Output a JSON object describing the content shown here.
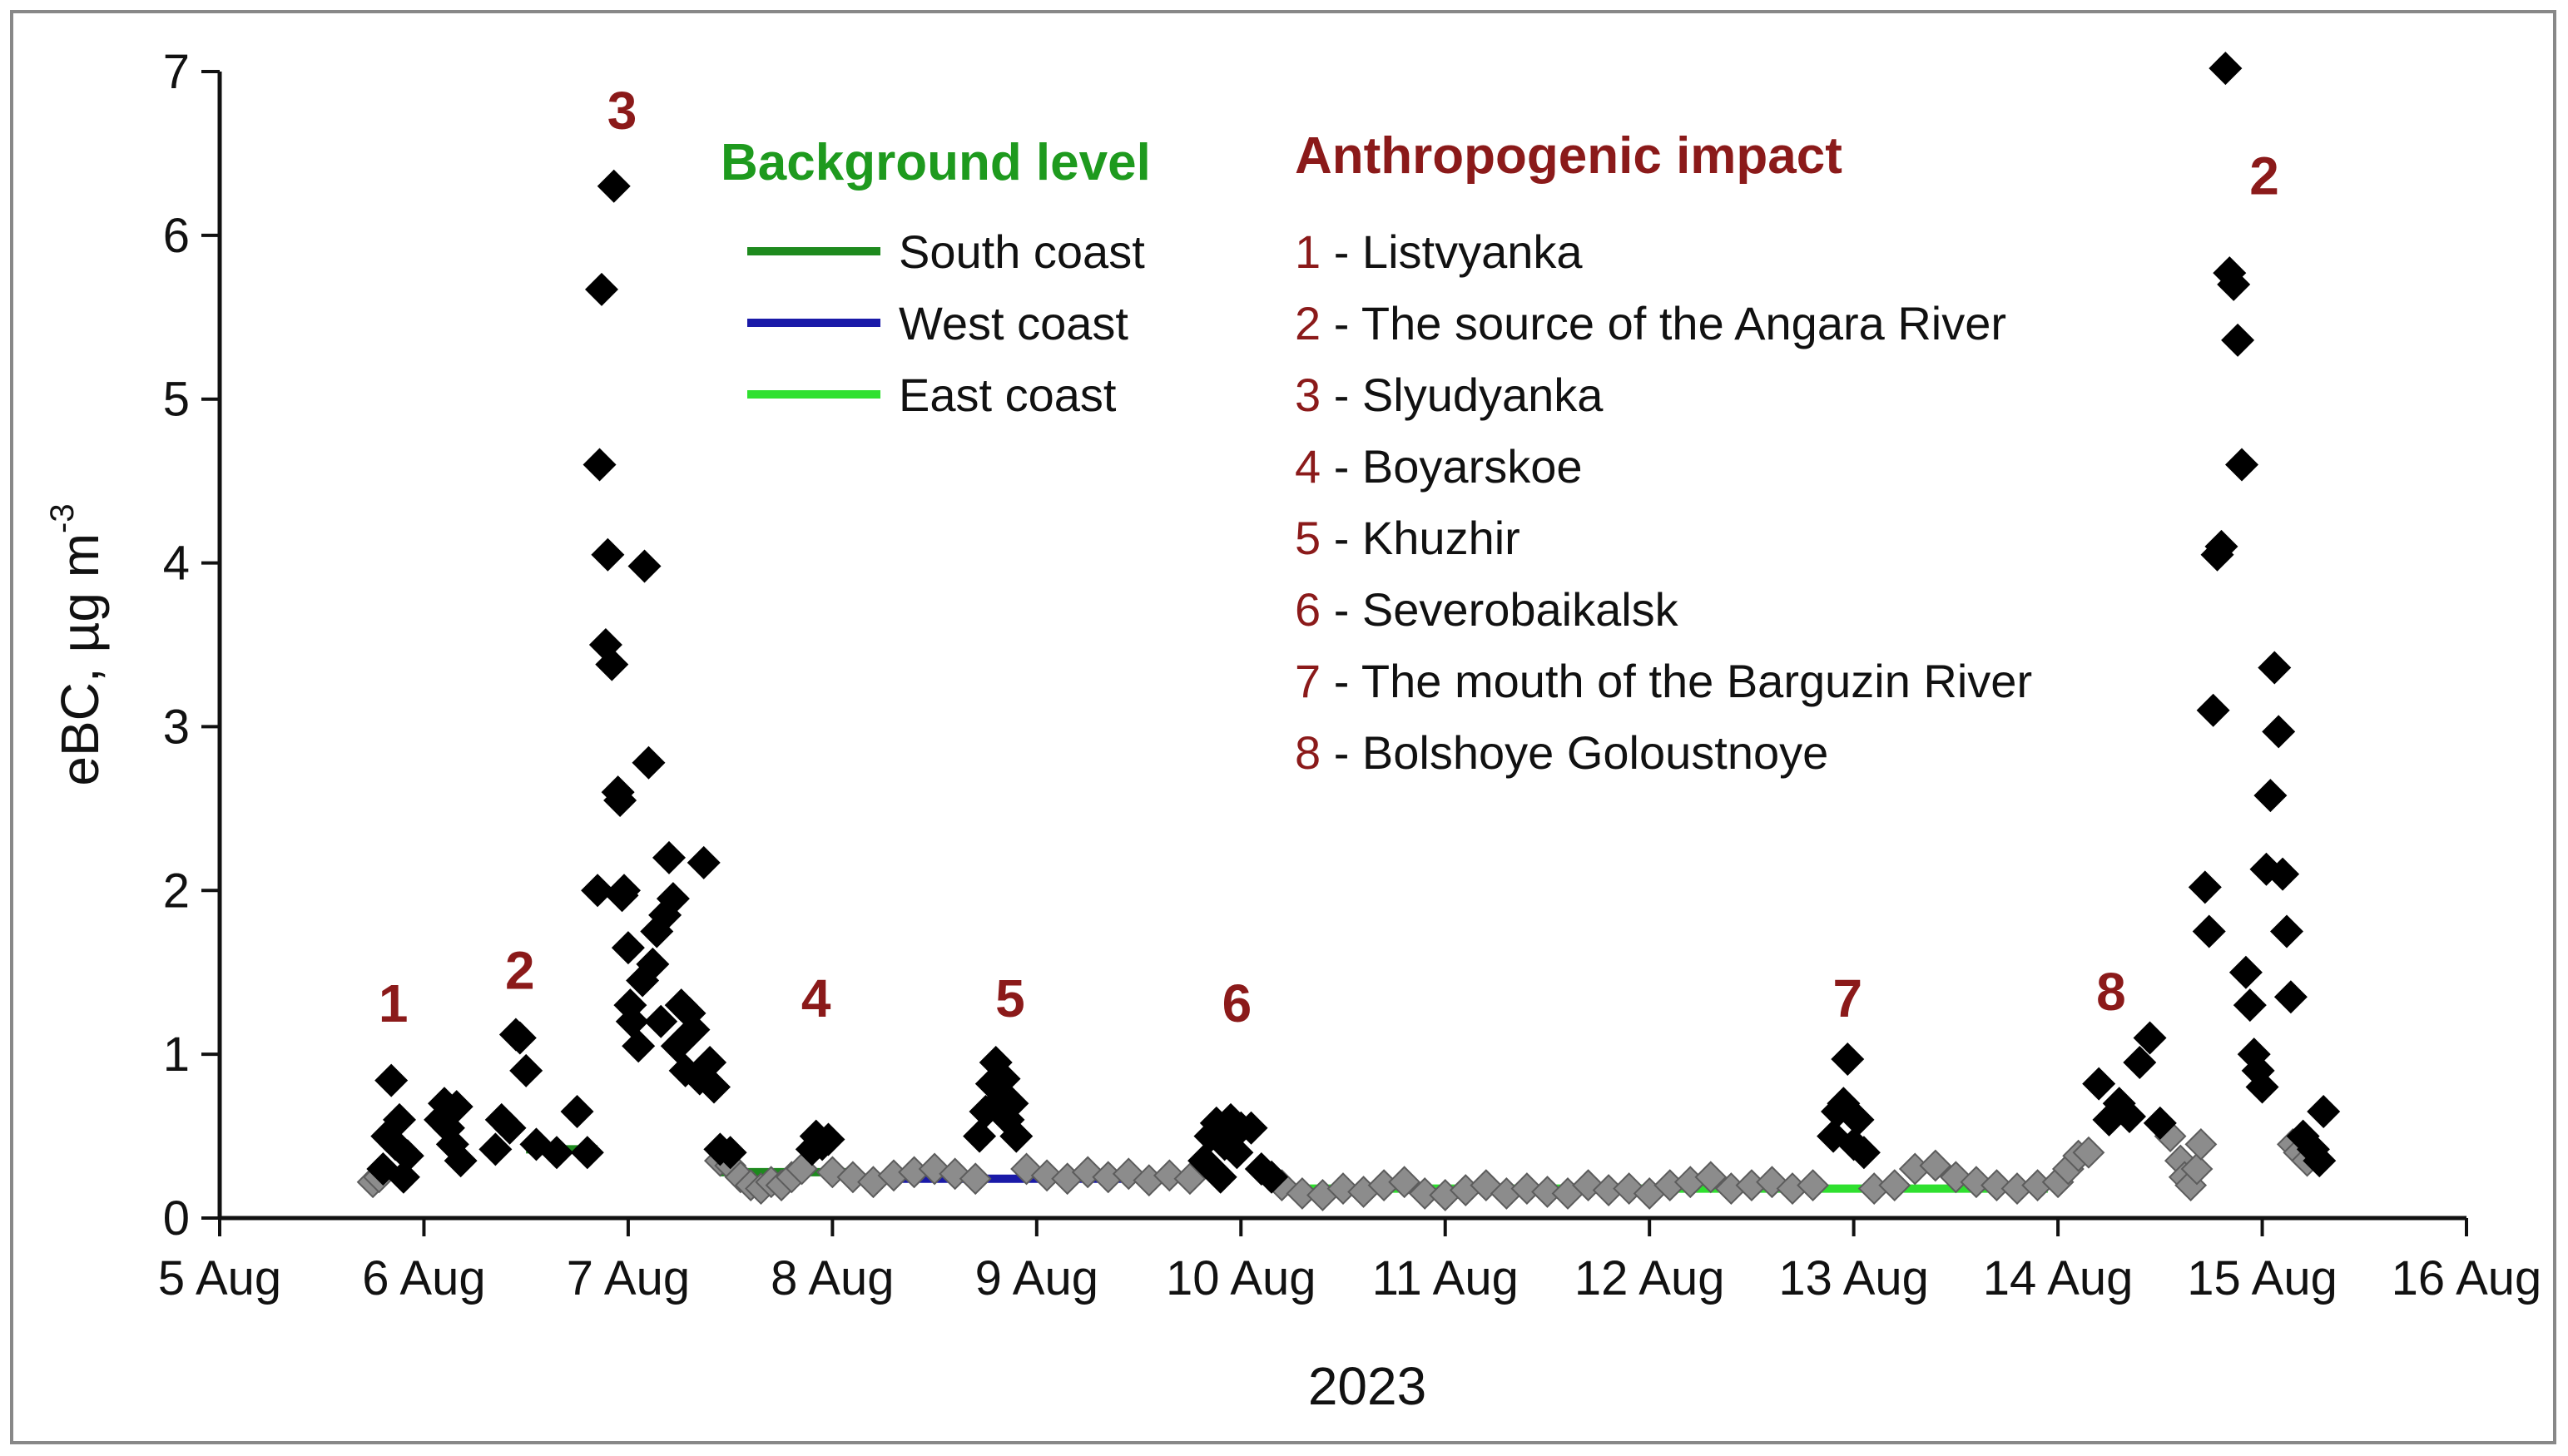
{
  "chart_data": {
    "type": "scatter",
    "title": "",
    "xlabel": "2023",
    "ylabel": "eBC, µg m",
    "ylabel_superscript": "-3",
    "xlim": [
      5,
      16
    ],
    "ylim": [
      0,
      7
    ],
    "x_ticks": [
      {
        "value": 5,
        "label": "5 Aug"
      },
      {
        "value": 6,
        "label": "6 Aug"
      },
      {
        "value": 7,
        "label": "7 Aug"
      },
      {
        "value": 8,
        "label": "8 Aug"
      },
      {
        "value": 9,
        "label": "9 Aug"
      },
      {
        "value": 10,
        "label": "10 Aug"
      },
      {
        "value": 11,
        "label": "11 Aug"
      },
      {
        "value": 12,
        "label": "12 Aug"
      },
      {
        "value": 13,
        "label": "13 Aug"
      },
      {
        "value": 14,
        "label": "14 Aug"
      },
      {
        "value": 15,
        "label": "15 Aug"
      },
      {
        "value": 16,
        "label": "16 Aug"
      }
    ],
    "y_ticks": [
      {
        "value": 0,
        "label": "0"
      },
      {
        "value": 1,
        "label": "1"
      },
      {
        "value": 2,
        "label": "2"
      },
      {
        "value": 3,
        "label": "3"
      },
      {
        "value": 4,
        "label": "4"
      },
      {
        "value": 5,
        "label": "5"
      },
      {
        "value": 6,
        "label": "6"
      },
      {
        "value": 7,
        "label": "7"
      }
    ],
    "grid": false,
    "series": [
      {
        "marker": "diamond",
        "color": "#000000",
        "points": [
          [
            5.8,
            0.3
          ],
          [
            5.82,
            0.5
          ],
          [
            5.84,
            0.84
          ],
          [
            5.86,
            0.45
          ],
          [
            5.88,
            0.6
          ],
          [
            5.9,
            0.25
          ],
          [
            5.92,
            0.38
          ],
          [
            6.08,
            0.6
          ],
          [
            6.1,
            0.7
          ],
          [
            6.12,
            0.55
          ],
          [
            6.14,
            0.45
          ],
          [
            6.16,
            0.68
          ],
          [
            6.18,
            0.35
          ],
          [
            6.35,
            0.42
          ],
          [
            6.38,
            0.6
          ],
          [
            6.42,
            0.55
          ],
          [
            6.45,
            1.12
          ],
          [
            6.47,
            1.1
          ],
          [
            6.5,
            0.9
          ],
          [
            6.55,
            0.45
          ],
          [
            6.65,
            0.4
          ],
          [
            6.75,
            0.65
          ],
          [
            6.8,
            0.4
          ],
          [
            6.85,
            2.0
          ],
          [
            6.86,
            4.6
          ],
          [
            6.87,
            5.67
          ],
          [
            6.89,
            3.5
          ],
          [
            6.9,
            4.05
          ],
          [
            6.92,
            3.38
          ],
          [
            6.93,
            6.3
          ],
          [
            6.95,
            2.6
          ],
          [
            6.96,
            2.55
          ],
          [
            6.97,
            1.97
          ],
          [
            6.98,
            2.0
          ],
          [
            7.0,
            1.65
          ],
          [
            7.01,
            1.3
          ],
          [
            7.02,
            1.2
          ],
          [
            7.05,
            1.05
          ],
          [
            7.07,
            1.45
          ],
          [
            7.08,
            3.98
          ],
          [
            7.1,
            2.78
          ],
          [
            7.12,
            1.55
          ],
          [
            7.14,
            1.75
          ],
          [
            7.16,
            1.2
          ],
          [
            7.18,
            1.85
          ],
          [
            7.2,
            2.2
          ],
          [
            7.22,
            1.95
          ],
          [
            7.24,
            1.05
          ],
          [
            7.26,
            1.3
          ],
          [
            7.28,
            0.9
          ],
          [
            7.3,
            1.25
          ],
          [
            7.32,
            1.15
          ],
          [
            7.35,
            0.85
          ],
          [
            7.37,
            2.17
          ],
          [
            7.4,
            0.95
          ],
          [
            7.42,
            0.8
          ],
          [
            7.45,
            0.42
          ],
          [
            7.5,
            0.4
          ],
          [
            7.9,
            0.42
          ],
          [
            7.92,
            0.5
          ],
          [
            7.95,
            0.45
          ],
          [
            7.98,
            0.48
          ],
          [
            8.72,
            0.5
          ],
          [
            8.75,
            0.65
          ],
          [
            8.78,
            0.82
          ],
          [
            8.8,
            0.95
          ],
          [
            8.82,
            0.72
          ],
          [
            8.84,
            0.85
          ],
          [
            8.86,
            0.6
          ],
          [
            8.88,
            0.7
          ],
          [
            8.9,
            0.5
          ],
          [
            9.82,
            0.35
          ],
          [
            9.85,
            0.5
          ],
          [
            9.88,
            0.58
          ],
          [
            9.9,
            0.25
          ],
          [
            9.92,
            0.45
          ],
          [
            9.95,
            0.6
          ],
          [
            9.98,
            0.4
          ],
          [
            10.0,
            0.55
          ],
          [
            10.05,
            0.55
          ],
          [
            10.1,
            0.3
          ],
          [
            10.15,
            0.25
          ],
          [
            12.9,
            0.5
          ],
          [
            12.92,
            0.65
          ],
          [
            12.95,
            0.7
          ],
          [
            12.97,
            0.97
          ],
          [
            13.0,
            0.45
          ],
          [
            13.02,
            0.6
          ],
          [
            13.05,
            0.4
          ],
          [
            14.2,
            0.82
          ],
          [
            14.25,
            0.6
          ],
          [
            14.3,
            0.7
          ],
          [
            14.35,
            0.62
          ],
          [
            14.4,
            0.95
          ],
          [
            14.45,
            1.1
          ],
          [
            14.5,
            0.58
          ],
          [
            14.72,
            2.02
          ],
          [
            14.74,
            1.75
          ],
          [
            14.76,
            3.1
          ],
          [
            14.78,
            4.05
          ],
          [
            14.8,
            4.1
          ],
          [
            14.82,
            7.02
          ],
          [
            14.84,
            5.77
          ],
          [
            14.86,
            5.7
          ],
          [
            14.88,
            5.36
          ],
          [
            14.9,
            4.6
          ],
          [
            14.92,
            1.5
          ],
          [
            14.94,
            1.3
          ],
          [
            14.96,
            1.0
          ],
          [
            14.98,
            0.9
          ],
          [
            15.0,
            0.8
          ],
          [
            15.02,
            2.13
          ],
          [
            15.04,
            2.58
          ],
          [
            15.06,
            3.36
          ],
          [
            15.08,
            2.97
          ],
          [
            15.1,
            2.1
          ],
          [
            15.12,
            1.75
          ],
          [
            15.14,
            1.35
          ],
          [
            15.2,
            0.5
          ],
          [
            15.25,
            0.42
          ],
          [
            15.3,
            0.65
          ],
          [
            15.28,
            0.35
          ]
        ]
      },
      {
        "marker": "diamond",
        "color": "#8c8c8c",
        "points": [
          [
            5.75,
            0.22
          ],
          [
            5.78,
            0.25
          ],
          [
            7.45,
            0.35
          ],
          [
            7.5,
            0.32
          ],
          [
            7.55,
            0.25
          ],
          [
            7.6,
            0.2
          ],
          [
            7.65,
            0.18
          ],
          [
            7.7,
            0.22
          ],
          [
            7.75,
            0.2
          ],
          [
            7.8,
            0.25
          ],
          [
            7.85,
            0.3
          ],
          [
            8.0,
            0.28
          ],
          [
            8.1,
            0.25
          ],
          [
            8.2,
            0.22
          ],
          [
            8.3,
            0.26
          ],
          [
            8.4,
            0.28
          ],
          [
            8.5,
            0.3
          ],
          [
            8.6,
            0.27
          ],
          [
            8.7,
            0.24
          ],
          [
            8.95,
            0.3
          ],
          [
            9.05,
            0.26
          ],
          [
            9.15,
            0.24
          ],
          [
            9.25,
            0.28
          ],
          [
            9.35,
            0.25
          ],
          [
            9.45,
            0.27
          ],
          [
            9.55,
            0.23
          ],
          [
            9.65,
            0.26
          ],
          [
            9.75,
            0.24
          ],
          [
            10.2,
            0.2
          ],
          [
            10.3,
            0.15
          ],
          [
            10.4,
            0.14
          ],
          [
            10.5,
            0.18
          ],
          [
            10.6,
            0.16
          ],
          [
            10.7,
            0.2
          ],
          [
            10.8,
            0.22
          ],
          [
            10.9,
            0.15
          ],
          [
            11.0,
            0.14
          ],
          [
            11.1,
            0.17
          ],
          [
            11.2,
            0.2
          ],
          [
            11.3,
            0.15
          ],
          [
            11.4,
            0.18
          ],
          [
            11.5,
            0.16
          ],
          [
            11.6,
            0.15
          ],
          [
            11.7,
            0.2
          ],
          [
            11.8,
            0.17
          ],
          [
            11.9,
            0.18
          ],
          [
            12.0,
            0.15
          ],
          [
            12.1,
            0.2
          ],
          [
            12.2,
            0.22
          ],
          [
            12.3,
            0.25
          ],
          [
            12.4,
            0.18
          ],
          [
            12.5,
            0.2
          ],
          [
            12.6,
            0.22
          ],
          [
            12.7,
            0.18
          ],
          [
            12.8,
            0.2
          ],
          [
            13.1,
            0.18
          ],
          [
            13.2,
            0.2
          ],
          [
            13.3,
            0.3
          ],
          [
            13.4,
            0.32
          ],
          [
            13.5,
            0.25
          ],
          [
            13.6,
            0.22
          ],
          [
            13.7,
            0.2
          ],
          [
            13.8,
            0.18
          ],
          [
            13.9,
            0.2
          ],
          [
            14.0,
            0.22
          ],
          [
            14.05,
            0.3
          ],
          [
            14.1,
            0.38
          ],
          [
            14.15,
            0.4
          ],
          [
            14.55,
            0.5
          ],
          [
            14.6,
            0.35
          ],
          [
            14.62,
            0.25
          ],
          [
            14.65,
            0.2
          ],
          [
            14.68,
            0.3
          ],
          [
            14.7,
            0.45
          ],
          [
            15.15,
            0.45
          ],
          [
            15.18,
            0.4
          ],
          [
            15.22,
            0.35
          ]
        ]
      }
    ],
    "background_lines": [
      {
        "name": "South coast",
        "color": "#1e8a1e",
        "segments": [
          [
            6.5,
            6.85,
            0.42
          ],
          [
            7.45,
            8.08,
            0.28
          ]
        ]
      },
      {
        "name": "West coast",
        "color": "#1a1aa8",
        "segments": [
          [
            8.15,
            9.7,
            0.24
          ]
        ]
      },
      {
        "name": "East coast",
        "color": "#2fe02f",
        "segments": [
          [
            10.3,
            13.95,
            0.18
          ]
        ]
      }
    ],
    "peak_labels": [
      {
        "text": "1",
        "x": 5.85,
        "y": 1.2
      },
      {
        "text": "2",
        "x": 6.47,
        "y": 1.4
      },
      {
        "text": "3",
        "x": 6.97,
        "y": 6.65
      },
      {
        "text": "4",
        "x": 7.92,
        "y": 1.23
      },
      {
        "text": "5",
        "x": 8.87,
        "y": 1.23
      },
      {
        "text": "6",
        "x": 9.98,
        "y": 1.2
      },
      {
        "text": "7",
        "x": 12.97,
        "y": 1.23
      },
      {
        "text": "8",
        "x": 14.26,
        "y": 1.27
      },
      {
        "text": "2",
        "x": 15.01,
        "y": 6.25
      }
    ]
  },
  "legend_background": {
    "heading": "Background level",
    "heading_color": "#1e9a1e",
    "items": [
      {
        "label": "South coast",
        "color": "#1e8a1e"
      },
      {
        "label": "West coast",
        "color": "#1a1aa8"
      },
      {
        "label": "East coast",
        "color": "#2fe02f"
      }
    ]
  },
  "legend_anthropogenic": {
    "heading": "Anthropogenic impact",
    "heading_color": "#8b1a1a",
    "items": [
      {
        "num": "1",
        "label": " - Listvyanka"
      },
      {
        "num": "2",
        "label": " - The source of the Angara River"
      },
      {
        "num": "3",
        "label": " - Slyudyanka"
      },
      {
        "num": "4",
        "label": " - Boyarskoe"
      },
      {
        "num": "5",
        "label": " - Khuzhir"
      },
      {
        "num": "6",
        "label": " - Severobaikalsk"
      },
      {
        "num": "7",
        "label": " - The mouth of the Barguzin River"
      },
      {
        "num": "8",
        "label": " - Bolshoye Goloustnoye"
      }
    ]
  },
  "colors": {
    "peak_label": "#8b1a1a",
    "axis": "#111111",
    "frame": "#888888"
  }
}
